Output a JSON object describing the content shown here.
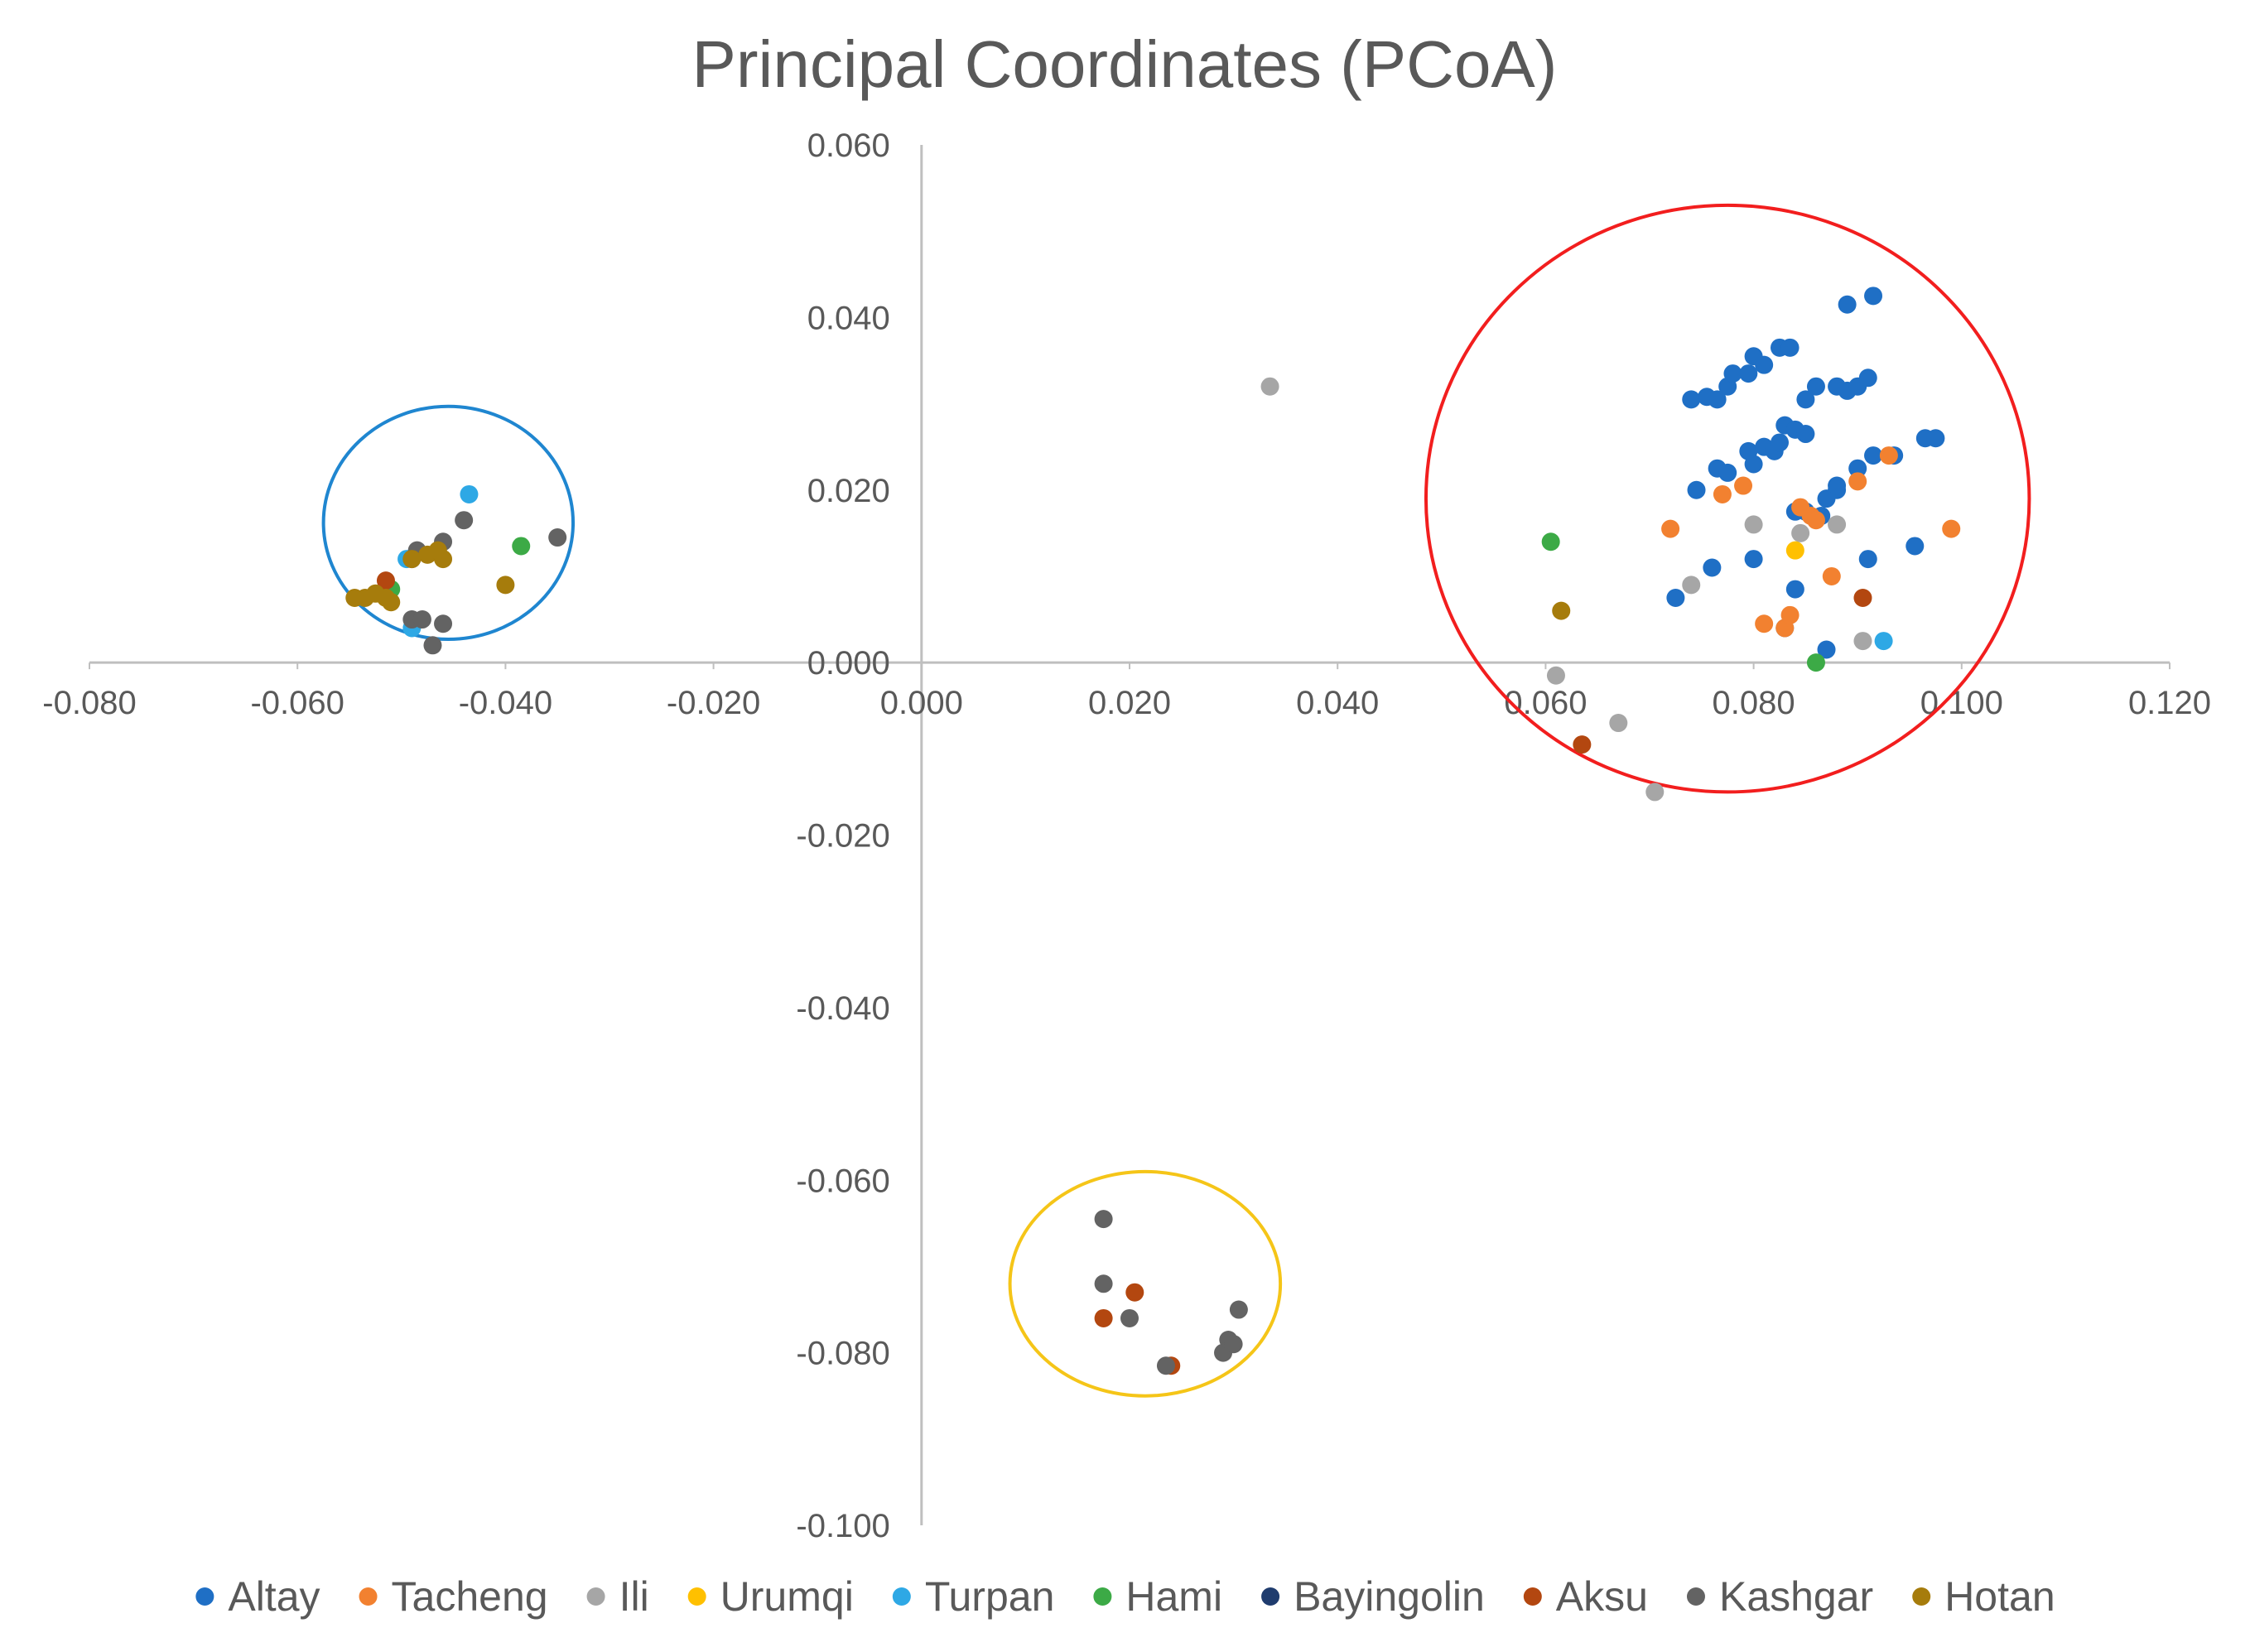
{
  "chart_data": {
    "type": "scatter",
    "title": "Principal Coordinates (PCoA)",
    "xlabel": "",
    "ylabel": "",
    "xlim": [
      -0.08,
      0.12
    ],
    "ylim": [
      -0.1,
      0.06
    ],
    "x_ticks": [
      "-0.080",
      "-0.060",
      "-0.040",
      "-0.020",
      "0.000",
      "0.020",
      "0.040",
      "0.060",
      "0.080",
      "0.100",
      "0.120"
    ],
    "y_ticks": [
      "0.060",
      "0.040",
      "0.020",
      "0.000",
      "-0.020",
      "-0.040",
      "-0.060",
      "-0.080",
      "-0.100"
    ],
    "grid": false,
    "legend_position": "bottom",
    "series": [
      {
        "name": "Altay",
        "color": "#1F6FC5",
        "points": [
          [
            0.074,
            0.0305
          ],
          [
            0.0755,
            0.0308
          ],
          [
            0.0765,
            0.0305
          ],
          [
            0.0775,
            0.032
          ],
          [
            0.078,
            0.0335
          ],
          [
            0.0795,
            0.0335
          ],
          [
            0.08,
            0.0355
          ],
          [
            0.081,
            0.0345
          ],
          [
            0.0825,
            0.0365
          ],
          [
            0.0835,
            0.0365
          ],
          [
            0.085,
            0.0305
          ],
          [
            0.086,
            0.032
          ],
          [
            0.088,
            0.032
          ],
          [
            0.089,
            0.0315
          ],
          [
            0.09,
            0.032
          ],
          [
            0.091,
            0.033
          ],
          [
            0.089,
            0.0415
          ],
          [
            0.0915,
            0.0425
          ],
          [
            0.0765,
            0.0225
          ],
          [
            0.0775,
            0.022
          ],
          [
            0.0795,
            0.0245
          ],
          [
            0.08,
            0.023
          ],
          [
            0.081,
            0.025
          ],
          [
            0.082,
            0.0245
          ],
          [
            0.0825,
            0.0255
          ],
          [
            0.083,
            0.0275
          ],
          [
            0.084,
            0.027
          ],
          [
            0.085,
            0.0265
          ],
          [
            0.087,
            0.019
          ],
          [
            0.088,
            0.02
          ],
          [
            0.088,
            0.0205
          ],
          [
            0.09,
            0.0225
          ],
          [
            0.0915,
            0.024
          ],
          [
            0.0935,
            0.024
          ],
          [
            0.0965,
            0.026
          ],
          [
            0.0975,
            0.026
          ],
          [
            0.0745,
            0.02
          ],
          [
            0.076,
            0.011
          ],
          [
            0.08,
            0.012
          ],
          [
            0.084,
            0.0175
          ],
          [
            0.085,
            0.0175
          ],
          [
            0.0865,
            0.017
          ],
          [
            0.084,
            0.0085
          ],
          [
            0.083,
            0.004
          ],
          [
            0.087,
            0.0015
          ],
          [
            0.091,
            0.012
          ],
          [
            0.0955,
            0.0135
          ],
          [
            0.0725,
            0.0075
          ]
        ]
      },
      {
        "name": "Tacheng",
        "color": "#F28130",
        "points": [
          [
            0.072,
            0.0155
          ],
          [
            0.077,
            0.0195
          ],
          [
            0.079,
            0.0205
          ],
          [
            0.0855,
            0.017
          ],
          [
            0.086,
            0.0165
          ],
          [
            0.0875,
            0.01
          ],
          [
            0.09,
            0.021
          ],
          [
            0.093,
            0.024
          ],
          [
            0.099,
            0.0155
          ],
          [
            0.081,
            0.0045
          ],
          [
            0.083,
            0.004
          ],
          [
            0.0835,
            0.0055
          ],
          [
            0.0845,
            0.018
          ]
        ]
      },
      {
        "name": "Ili",
        "color": "#A6A6A6",
        "points": [
          [
            0.0335,
            0.032
          ],
          [
            0.08,
            0.016
          ],
          [
            0.0845,
            0.015
          ],
          [
            0.088,
            0.016
          ],
          [
            0.074,
            0.009
          ],
          [
            0.0905,
            0.0025
          ],
          [
            0.061,
            -0.0015
          ],
          [
            0.067,
            -0.007
          ],
          [
            0.0705,
            -0.015
          ]
        ]
      },
      {
        "name": "Urumqi",
        "color": "#FFC000",
        "points": [
          [
            0.084,
            0.013
          ]
        ]
      },
      {
        "name": "Turpan",
        "color": "#2EA8E5",
        "points": [
          [
            -0.0435,
            0.0195
          ],
          [
            -0.0495,
            0.012
          ],
          [
            -0.049,
            0.004
          ],
          [
            0.0925,
            0.0025
          ]
        ]
      },
      {
        "name": "Hami",
        "color": "#3CAA46",
        "points": [
          [
            -0.0385,
            0.0135
          ],
          [
            -0.051,
            0.0085
          ],
          [
            0.0605,
            0.014
          ],
          [
            0.086,
            0.0
          ]
        ]
      },
      {
        "name": "Bayingolin",
        "color": "#1F3C6E",
        "points": []
      },
      {
        "name": "Aksu",
        "color": "#B34710",
        "points": [
          [
            -0.0515,
            0.0095
          ],
          [
            0.0635,
            -0.0095
          ],
          [
            0.0905,
            0.0075
          ],
          [
            0.0175,
            -0.076
          ],
          [
            0.0205,
            -0.073
          ],
          [
            0.024,
            -0.0815
          ]
        ]
      },
      {
        "name": "Kashgar",
        "color": "#636363",
        "points": [
          [
            -0.035,
            0.0145
          ],
          [
            -0.044,
            0.0165
          ],
          [
            -0.046,
            0.014
          ],
          [
            -0.0485,
            0.013
          ],
          [
            -0.049,
            0.012
          ],
          [
            -0.049,
            0.005
          ],
          [
            -0.048,
            0.005
          ],
          [
            -0.046,
            0.0045
          ],
          [
            -0.047,
            0.002
          ],
          [
            0.0175,
            -0.0645
          ],
          [
            0.0175,
            -0.072
          ],
          [
            0.02,
            -0.076
          ],
          [
            0.0235,
            -0.0815
          ],
          [
            0.029,
            -0.08
          ],
          [
            0.0295,
            -0.0785
          ],
          [
            0.03,
            -0.079
          ],
          [
            0.0305,
            -0.075
          ]
        ]
      },
      {
        "name": "Hotan",
        "color": "#A67C0C",
        "points": [
          [
            -0.0545,
            0.0075
          ],
          [
            -0.0535,
            0.0075
          ],
          [
            -0.0525,
            0.008
          ],
          [
            -0.0515,
            0.0075
          ],
          [
            -0.051,
            0.007
          ],
          [
            -0.049,
            0.012
          ],
          [
            -0.0475,
            0.0125
          ],
          [
            -0.046,
            0.012
          ],
          [
            -0.0465,
            0.013
          ],
          [
            -0.04,
            0.009
          ],
          [
            0.0615,
            0.006
          ]
        ]
      }
    ],
    "annotations": [
      {
        "type": "ellipse",
        "color": "#1F86D0",
        "cx": -0.0455,
        "cy": 0.0162,
        "rx": 0.012,
        "ry": 0.0135
      },
      {
        "type": "ellipse",
        "color": "#F21E1E",
        "cx": 0.0775,
        "cy": 0.019,
        "rx": 0.029,
        "ry": 0.034
      },
      {
        "type": "ellipse",
        "color": "#F5C518",
        "cx": 0.0215,
        "cy": -0.072,
        "rx": 0.013,
        "ry": 0.013
      }
    ]
  }
}
